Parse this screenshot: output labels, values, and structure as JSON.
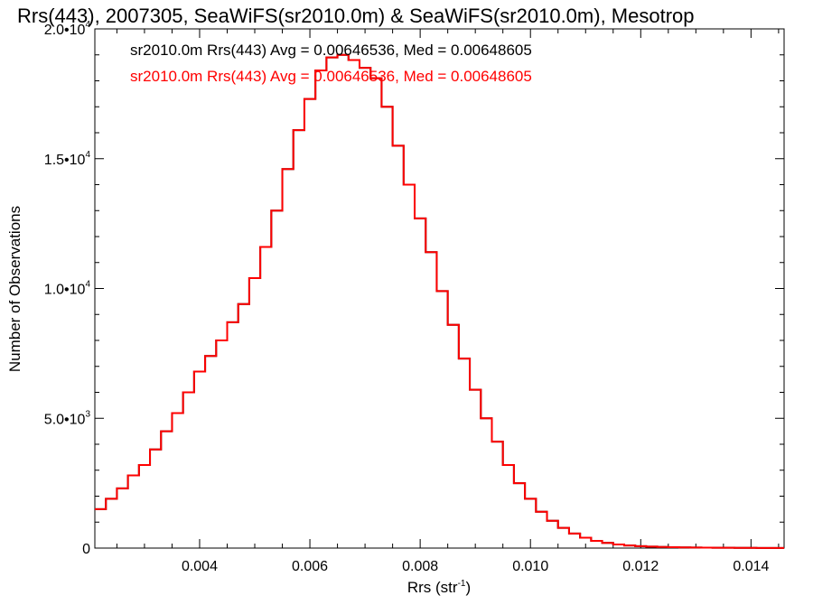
{
  "chart_data": {
    "type": "line",
    "title": "Rrs(443), 2007305, SeaWiFS(sr2010.0m) & SeaWiFS(sr2010.0m), Mesotrop",
    "xlabel": "Rrs (str",
    "xlabel_sup": "-1",
    "xlabel_close": ")",
    "ylabel": "Number of Observations",
    "xlim": [
      0.0021,
      0.0146
    ],
    "ylim": [
      0,
      20000
    ],
    "grid": false,
    "x_ticks": [
      0.004,
      0.006,
      0.008,
      0.01,
      0.012,
      0.014
    ],
    "x_tick_labels": [
      "0.004",
      "0.006",
      "0.008",
      "0.010",
      "0.012",
      "0.014"
    ],
    "y_ticks": [
      0,
      5000,
      10000,
      15000,
      20000
    ],
    "y_tick_labels": [
      {
        "mant": "0",
        "exp": ""
      },
      {
        "mant": "5.0•10",
        "exp": "3"
      },
      {
        "mant": "1.0•10",
        "exp": "4"
      },
      {
        "mant": "1.5•10",
        "exp": "4"
      },
      {
        "mant": "2.0•10",
        "exp": "4"
      }
    ],
    "annotations": [
      {
        "text": "sr2010.0m Rrs(443) Avg = 0.00646536, Med = 0.00648605",
        "color": "#000000"
      },
      {
        "text": "sr2010.0m Rrs(443) Avg = 0.00646536, Med = 0.00648605",
        "color": "#ff0000"
      }
    ],
    "series": [
      {
        "color": "#000000",
        "x": [
          0.0021,
          0.0023,
          0.0025,
          0.0027,
          0.0029,
          0.0031,
          0.0033,
          0.0035,
          0.0037,
          0.0039,
          0.0041,
          0.0043,
          0.0045,
          0.0047,
          0.0049,
          0.0051,
          0.0053,
          0.0055,
          0.0057,
          0.0059,
          0.0061,
          0.0063,
          0.0065,
          0.0067,
          0.0069,
          0.0071,
          0.0073,
          0.0075,
          0.0077,
          0.0079,
          0.0081,
          0.0083,
          0.0085,
          0.0087,
          0.0089,
          0.0091,
          0.0093,
          0.0095,
          0.0097,
          0.0099,
          0.0101,
          0.0103,
          0.0105,
          0.0107,
          0.0109,
          0.0111,
          0.0113,
          0.0115,
          0.0117,
          0.0119,
          0.0121,
          0.0123,
          0.0125,
          0.0127,
          0.0129,
          0.0131,
          0.0133,
          0.0135,
          0.0137,
          0.0139,
          0.0141,
          0.0143,
          0.0145
        ],
        "y": [
          1500,
          1900,
          2300,
          2800,
          3200,
          3800,
          4500,
          5200,
          6000,
          6800,
          7400,
          8000,
          8700,
          9400,
          10400,
          11600,
          13000,
          14600,
          16100,
          17300,
          18400,
          18900,
          19000,
          18800,
          18500,
          18100,
          17000,
          15500,
          14000,
          12700,
          11400,
          9900,
          8600,
          7300,
          6100,
          5000,
          4100,
          3200,
          2500,
          1900,
          1400,
          1050,
          780,
          560,
          400,
          280,
          200,
          140,
          100,
          75,
          55,
          45,
          35,
          28,
          22,
          18,
          14,
          12,
          10,
          8,
          6,
          5,
          4
        ]
      },
      {
        "color": "#ff0000",
        "x": [
          0.0021,
          0.0023,
          0.0025,
          0.0027,
          0.0029,
          0.0031,
          0.0033,
          0.0035,
          0.0037,
          0.0039,
          0.0041,
          0.0043,
          0.0045,
          0.0047,
          0.0049,
          0.0051,
          0.0053,
          0.0055,
          0.0057,
          0.0059,
          0.0061,
          0.0063,
          0.0065,
          0.0067,
          0.0069,
          0.0071,
          0.0073,
          0.0075,
          0.0077,
          0.0079,
          0.0081,
          0.0083,
          0.0085,
          0.0087,
          0.0089,
          0.0091,
          0.0093,
          0.0095,
          0.0097,
          0.0099,
          0.0101,
          0.0103,
          0.0105,
          0.0107,
          0.0109,
          0.0111,
          0.0113,
          0.0115,
          0.0117,
          0.0119,
          0.0121,
          0.0123,
          0.0125,
          0.0127,
          0.0129,
          0.0131,
          0.0133,
          0.0135,
          0.0137,
          0.0139,
          0.0141,
          0.0143,
          0.0145
        ],
        "y": [
          1500,
          1900,
          2300,
          2800,
          3200,
          3800,
          4500,
          5200,
          6000,
          6800,
          7400,
          8000,
          8700,
          9400,
          10400,
          11600,
          13000,
          14600,
          16100,
          17300,
          18400,
          18900,
          19000,
          18800,
          18500,
          18100,
          17000,
          15500,
          14000,
          12700,
          11400,
          9900,
          8600,
          7300,
          6100,
          5000,
          4100,
          3200,
          2500,
          1900,
          1400,
          1050,
          780,
          560,
          400,
          280,
          200,
          140,
          100,
          75,
          55,
          45,
          35,
          28,
          22,
          18,
          14,
          12,
          10,
          8,
          6,
          5,
          4
        ]
      }
    ]
  }
}
